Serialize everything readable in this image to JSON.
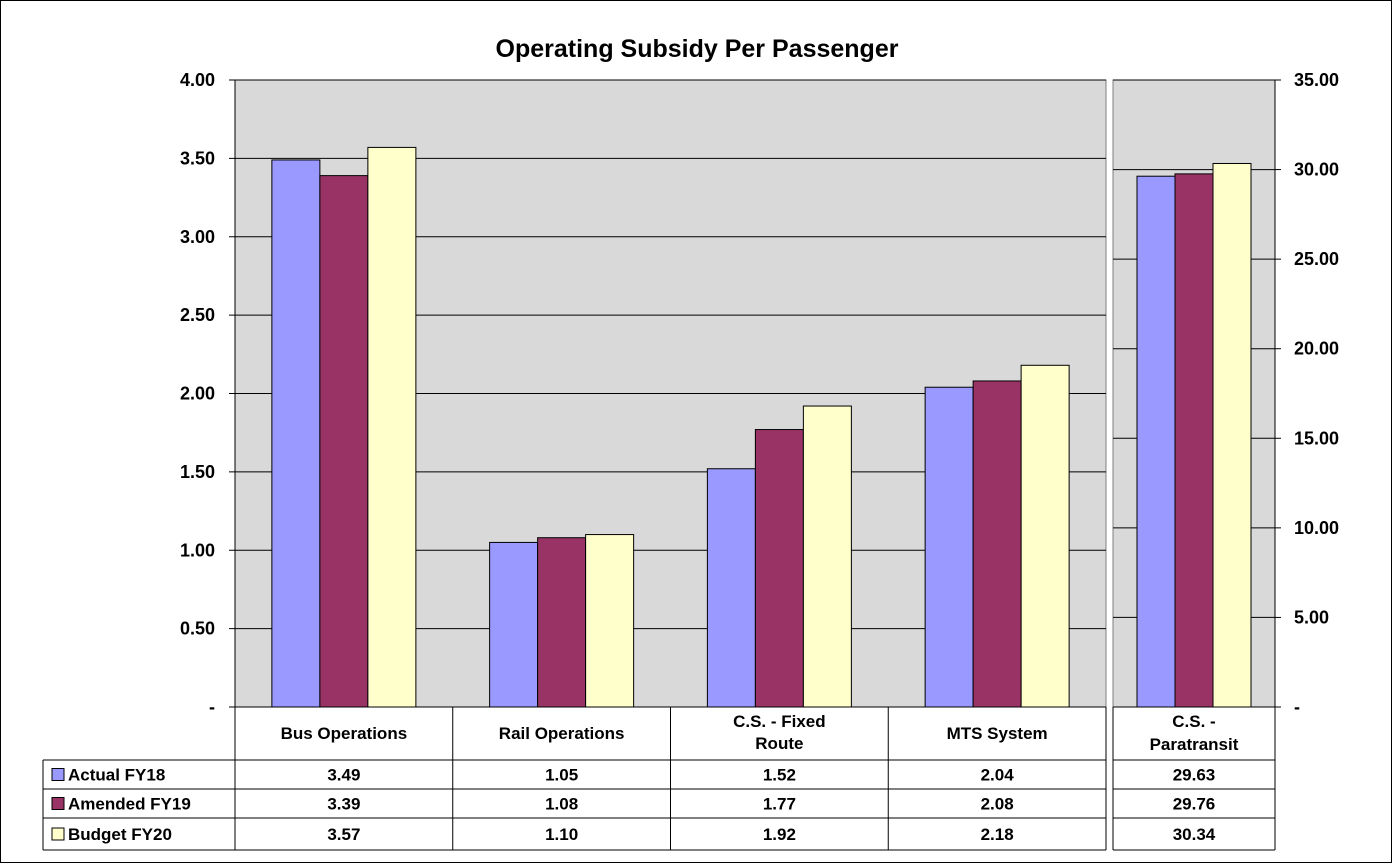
{
  "chart_data": {
    "type": "bar",
    "title": "Operating Subsidy Per Passenger",
    "series_names": [
      "Actual  FY18",
      "Amended  FY19",
      "Budget  FY20"
    ],
    "colors": [
      "#9999ff",
      "#993366",
      "#ffffcc"
    ],
    "left_panel": {
      "categories": [
        [
          "Bus Operations"
        ],
        [
          "Rail Operations"
        ],
        [
          "C.S. - Fixed",
          "Route"
        ],
        [
          "MTS System"
        ]
      ],
      "ylim": [
        0,
        4
      ],
      "ytick_values": [
        0,
        0.5,
        1,
        1.5,
        2,
        2.5,
        3,
        3.5,
        4
      ],
      "ytick_labels": [
        "-",
        "0.50",
        "1.00",
        "1.50",
        "2.00",
        "2.50",
        "3.00",
        "3.50",
        "4.00"
      ],
      "values": [
        [
          3.49,
          1.05,
          1.52,
          2.04
        ],
        [
          3.39,
          1.08,
          1.77,
          2.08
        ],
        [
          3.57,
          1.1,
          1.92,
          2.18
        ]
      ],
      "table_text": [
        [
          "3.49",
          "1.05",
          "1.52",
          "2.04"
        ],
        [
          "3.39",
          "1.08",
          "1.77",
          "2.08"
        ],
        [
          "3.57",
          "1.10",
          "1.92",
          "2.18"
        ]
      ]
    },
    "right_panel": {
      "categories": [
        [
          "C.S. -",
          "Paratransit"
        ]
      ],
      "ylim": [
        0,
        35
      ],
      "ytick_values": [
        0,
        5,
        10,
        15,
        20,
        25,
        30,
        35
      ],
      "ytick_labels": [
        "-",
        "5.00",
        "10.00",
        "15.00",
        "20.00",
        "25.00",
        "30.00",
        "35.00"
      ],
      "values": [
        [
          29.63
        ],
        [
          29.76
        ],
        [
          30.34
        ]
      ],
      "table_text": [
        [
          "29.63"
        ],
        [
          "29.76"
        ],
        [
          "30.34"
        ]
      ]
    },
    "grid": true,
    "legend": "data-table-left"
  }
}
